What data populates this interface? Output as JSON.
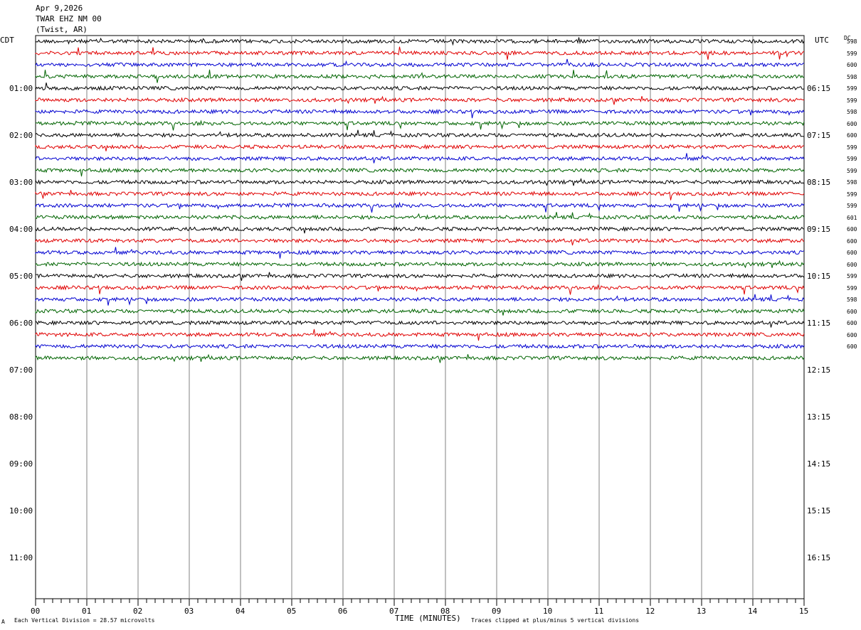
{
  "header": {
    "date": "Apr 9,2026",
    "station": "TWAR EHZ NM 00",
    "location": "(Twist, AR)"
  },
  "left_tz": "CDT",
  "right_tz": "UTC",
  "dc_header": "DC",
  "footer": {
    "scale": "Each Vertical Division =   28.57 microvolts",
    "clip": "Traces clipped at plus/minus 5 vertical divisions",
    "corner": "A"
  },
  "chart_data": {
    "type": "line",
    "title": "TWAR EHZ NM 00",
    "xlabel": "TIME (MINUTES)",
    "xlim": [
      0,
      15
    ],
    "x_ticks": [
      "00",
      "01",
      "02",
      "03",
      "04",
      "05",
      "06",
      "07",
      "08",
      "09",
      "10",
      "11",
      "12",
      "13",
      "14",
      "15"
    ],
    "left_time_labels": [
      "01:00",
      "02:00",
      "03:00",
      "04:00",
      "05:00",
      "06:00",
      "07:00",
      "08:00",
      "09:00",
      "10:00",
      "11:00"
    ],
    "right_time_labels": [
      "06:15",
      "07:15",
      "08:15",
      "09:15",
      "10:15",
      "11:15",
      "12:15",
      "13:15",
      "14:15",
      "15:15",
      "16:15"
    ],
    "trace_colors": [
      "#000000",
      "#e00000",
      "#0000d0",
      "#006400"
    ],
    "trace_count": 28,
    "dc_offsets": [
      "598",
      "599",
      "600",
      "598",
      "599",
      "599",
      "598",
      "600",
      "600",
      "599",
      "599",
      "599",
      "598",
      "599",
      "599",
      "601",
      "600",
      "600",
      "600",
      "600",
      "599",
      "599",
      "598",
      "600",
      "600",
      "600",
      "600"
    ],
    "grid": "vertical"
  }
}
